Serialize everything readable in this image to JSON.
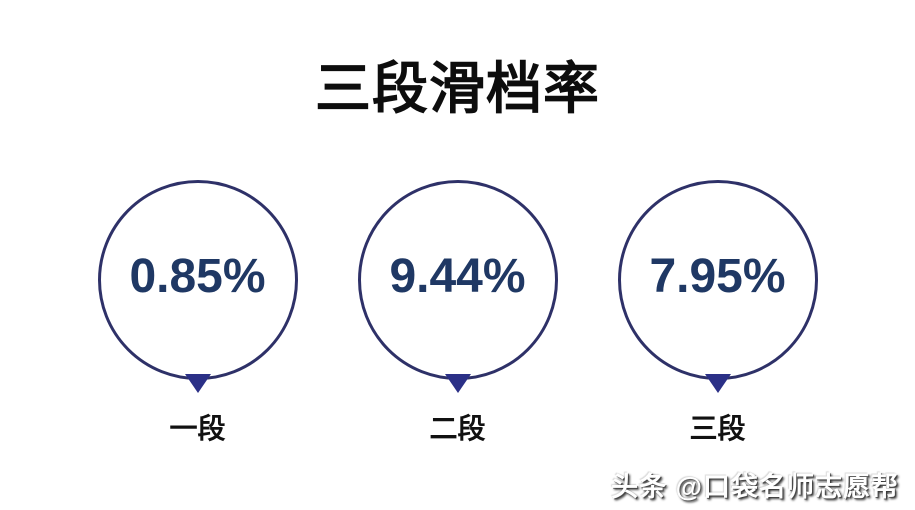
{
  "header": {
    "title": "三段滑档率"
  },
  "bubbles": [
    {
      "value": "0.85%",
      "label": "一段"
    },
    {
      "value": "9.44%",
      "label": "二段"
    },
    {
      "value": "7.95%",
      "label": "三段"
    }
  ],
  "watermark": {
    "text": "头条 @口袋名师志愿帮"
  },
  "colors": {
    "background": "#ffffff",
    "title_text": "#0d0d0d",
    "value_text": "#1f3864",
    "circle_stroke": "#2e3168",
    "pointer_fill": "#2b3087",
    "label_text": "#111111",
    "watermark_text": "#ffffff",
    "watermark_shadow": "#4d4d4d"
  },
  "chart_data": {
    "type": "bar",
    "title": "三段滑档率",
    "categories": [
      "一段",
      "二段",
      "三段"
    ],
    "values": [
      0.85,
      9.44,
      7.95
    ],
    "unit": "%",
    "xlabel": "",
    "ylabel": "",
    "legend": false,
    "grid": false,
    "layout_hint": "rendered as three white circle callout bubbles with navy outlines and downward pointer triangles; percentage value centered inside each circle, category label below each bubble"
  }
}
